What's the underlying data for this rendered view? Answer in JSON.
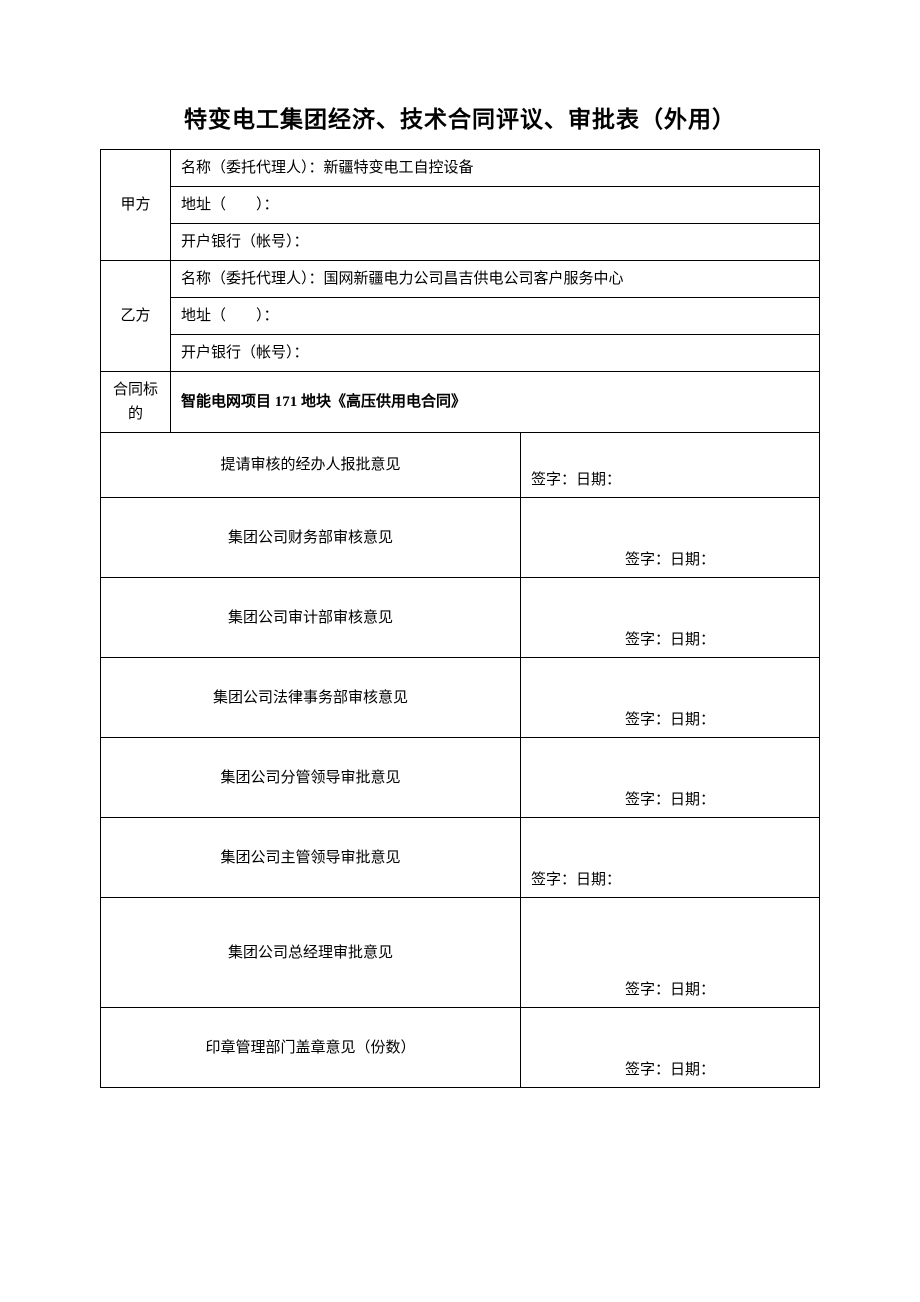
{
  "title": "特变电工集团经济、技术合同评议、审批表（外用）",
  "party_a": {
    "label": "甲方",
    "name_label": "名称（委托代理人）：",
    "name_value": "新疆特变电工自控设备",
    "address_label": "地址（　　）：",
    "bank_label": "开户银行（帐号）："
  },
  "party_b": {
    "label": "乙方",
    "name_label": "名称（委托代理人）：",
    "name_value": "国网新疆电力公司昌吉供电公司客户服务中心",
    "address_label": "地址（　　）：",
    "bank_label": "开户银行（帐号）："
  },
  "subject": {
    "label": "合同标的",
    "content": "智能电网项目 171 地块《高压供用电合同》"
  },
  "signature_label": "签字：日期：",
  "opinions": {
    "handler": "提请审核的经办人报批意见",
    "finance": "集团公司财务部审核意见",
    "audit": "集团公司审计部审核意见",
    "legal": "集团公司法律事务部审核意见",
    "deputy": "集团公司分管领导审批意见",
    "head": "集团公司主管领导审批意见",
    "gm": "集团公司总经理审批意见",
    "seal": "印章管理部门盖章意见（份数）"
  }
}
